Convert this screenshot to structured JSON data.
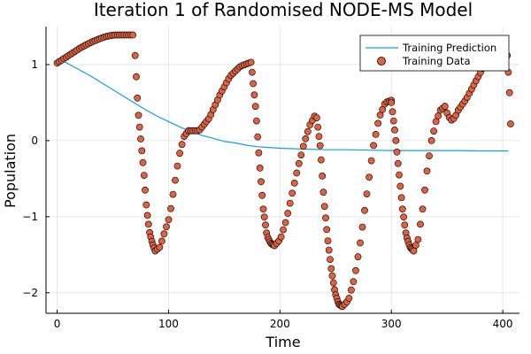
{
  "chart_data": {
    "type": "scatter",
    "title": "Iteration 1 of Randomised NODE-MS Model",
    "xlabel": "Time",
    "ylabel": "Population",
    "xlim": [
      -10,
      415
    ],
    "ylim": [
      -2.27,
      1.5
    ],
    "x_ticks": [
      0,
      100,
      200,
      300,
      400
    ],
    "y_ticks": [
      -2,
      -1,
      0,
      1
    ],
    "y_tick_labels": [
      "−2",
      "−1",
      "0",
      "1"
    ],
    "grid": true,
    "legend_position": "top-right",
    "colors": {
      "prediction": "#0fa0e6",
      "data": "#e0613f"
    },
    "series": [
      {
        "name": "Training Prediction",
        "type": "line",
        "x": [
          0,
          10,
          20,
          30,
          40,
          50,
          60,
          70,
          80,
          90,
          100,
          110,
          120,
          130,
          140,
          150,
          160,
          170,
          180,
          190,
          200,
          220,
          240,
          260,
          280,
          300,
          320,
          340,
          360,
          380,
          405
        ],
        "y": [
          1.08,
          1.01,
          0.93,
          0.85,
          0.76,
          0.67,
          0.58,
          0.49,
          0.4,
          0.32,
          0.25,
          0.18,
          0.12,
          0.07,
          0.03,
          -0.01,
          -0.03,
          -0.06,
          -0.08,
          -0.09,
          -0.1,
          -0.11,
          -0.12,
          -0.12,
          -0.125,
          -0.13,
          -0.13,
          -0.13,
          -0.13,
          -0.135,
          -0.135
        ]
      },
      {
        "name": "Training Data",
        "type": "scatter",
        "segments": [
          {
            "x0": 0,
            "x1": 68,
            "step": 2,
            "y": [
              1.02,
              1.07,
              1.12,
              1.17,
              1.22,
              1.26,
              1.3,
              1.33,
              1.36,
              1.38,
              1.39,
              1.39,
              1.39,
              1.39
            ]
          },
          {
            "x0": 70,
            "x1": 88,
            "step": 1,
            "y": [
              1.12,
              0.4,
              0.0,
              -0.4,
              -0.9,
              -1.2,
              -1.35,
              -1.45
            ]
          },
          {
            "x0": 88,
            "x1": 118,
            "step": 2,
            "y": [
              -1.45,
              -1.4,
              -1.2,
              -1.0,
              -0.6,
              -0.2,
              0.05,
              0.13
            ]
          },
          {
            "x0": 118,
            "x1": 174,
            "step": 2,
            "y": [
              0.13,
              0.13,
              0.3,
              0.6,
              0.85,
              0.98,
              1.03
            ]
          },
          {
            "x0": 175,
            "x1": 195,
            "step": 1,
            "y": [
              0.9,
              0.4,
              -0.3,
              -0.9,
              -1.25,
              -1.35,
              -1.38
            ]
          },
          {
            "x0": 195,
            "x1": 232,
            "step": 2,
            "y": [
              -1.38,
              -1.3,
              -1.05,
              -0.7,
              -0.35,
              -0.05,
              0.2,
              0.35
            ]
          },
          {
            "x0": 233,
            "x1": 256,
            "step": 1,
            "y": [
              0.3,
              -0.1,
              -0.8,
              -1.3,
              -1.7,
              -2.0,
              -2.15,
              -2.18
            ]
          },
          {
            "x0": 256,
            "x1": 300,
            "step": 2,
            "y": [
              -2.18,
              -2.1,
              -1.8,
              -1.3,
              -0.7,
              -0.1,
              0.3,
              0.5,
              0.53
            ]
          },
          {
            "x0": 300,
            "x1": 320,
            "step": 1,
            "y": [
              0.5,
              0.1,
              -0.4,
              -0.9,
              -1.25,
              -1.4,
              -1.45
            ]
          },
          {
            "x0": 320,
            "x1": 348,
            "step": 2,
            "y": [
              -1.45,
              -1.3,
              -0.9,
              -0.4,
              0.0,
              0.25,
              0.4,
              0.45
            ]
          },
          {
            "x0": 348,
            "x1": 360,
            "step": 2,
            "y": [
              0.45,
              0.32,
              0.27,
              0.3,
              0.4
            ]
          },
          {
            "x0": 360,
            "x1": 404,
            "step": 2,
            "y": [
              0.4,
              0.55,
              0.75,
              0.95,
              1.08,
              1.15,
              1.12
            ]
          },
          {
            "x0": 405,
            "x1": 407,
            "step": 1,
            "y": [
              0.9,
              0.63,
              0.22
            ]
          }
        ]
      }
    ]
  }
}
